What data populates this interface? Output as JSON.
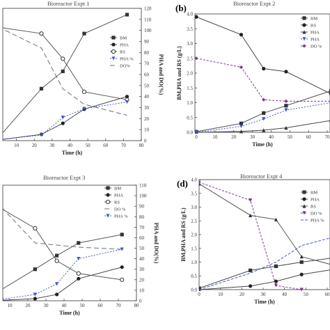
{
  "chart_data": [
    {
      "type": "line",
      "title": "Bioreactor Expt 1",
      "xlabel": "Time (h)",
      "ylabel_right": "PHA and DO(%)",
      "xlim": [
        0,
        80
      ],
      "x_ticks": [
        "10",
        "20",
        "30",
        "40",
        "50",
        "60",
        "70",
        "80"
      ],
      "y2lim": [
        0,
        120
      ],
      "y2_ticks": [
        "0",
        "10",
        "20",
        "30",
        "40",
        "50",
        "60",
        "70",
        "80",
        "90",
        "100",
        "110",
        "120"
      ],
      "legend": [
        "BM",
        "PHA",
        "RS",
        "PHA %",
        "DO%"
      ],
      "legend_position": "top-right",
      "series": [
        {
          "name": "BM",
          "axis": "left",
          "x": [
            0,
            24,
            36,
            48,
            72
          ],
          "y": [
            0.1,
            1.65,
            2.2,
            3.4,
            4.0
          ]
        },
        {
          "name": "PHA",
          "axis": "left",
          "x": [
            0,
            24,
            36,
            48,
            72
          ],
          "y": [
            0.02,
            0.2,
            0.55,
            1.0,
            1.4
          ]
        },
        {
          "name": "RS",
          "axis": "left",
          "x": [
            0,
            24,
            36,
            48,
            72
          ],
          "y": [
            3.6,
            3.4,
            2.6,
            1.55,
            1.3
          ]
        },
        {
          "name": "PHA %",
          "axis": "right",
          "x": [
            0,
            24,
            36,
            48,
            72
          ],
          "y": [
            1,
            5,
            21,
            29,
            35
          ]
        },
        {
          "name": "DO%",
          "axis": "right",
          "x": [
            0,
            24,
            36,
            48,
            72
          ],
          "y": [
            103,
            84,
            47,
            33,
            23
          ]
        }
      ]
    },
    {
      "type": "line",
      "title": "Bioreactor Expt 2",
      "panel_label": "(b)",
      "xlabel": "Time (h)",
      "ylabel": "BM,PHA and RS (g/L)",
      "xlim": [
        0,
        70
      ],
      "x_ticks": [
        "0",
        "10",
        "20",
        "30",
        "40",
        "50",
        "60",
        "70"
      ],
      "ylim": [
        0,
        4.0
      ],
      "y_ticks": [
        "0.0",
        "0.5",
        "1.0",
        "1.5",
        "2.0",
        "2.5",
        "3.0",
        "3.5",
        "4.0"
      ],
      "legend": [
        "BM",
        "RS",
        "PHA",
        "PHA",
        "DO %"
      ],
      "legend_position": "top-right",
      "series": [
        {
          "name": "BM",
          "x": [
            0,
            24,
            36,
            48,
            72
          ],
          "y": [
            0.02,
            0.3,
            0.65,
            0.9,
            1.4
          ]
        },
        {
          "name": "RS",
          "x": [
            0,
            24,
            36,
            48,
            72
          ],
          "y": [
            3.9,
            3.3,
            2.15,
            2.05,
            1.3
          ]
        },
        {
          "name": "PHA",
          "x": [
            0,
            24,
            36,
            48,
            72
          ],
          "y": [
            0.0,
            0.03,
            0.07,
            0.15,
            0.4
          ]
        },
        {
          "name": "PHA",
          "x": [
            0,
            24,
            36,
            48,
            72
          ],
          "y": [
            0.0,
            0.2,
            0.45,
            0.75,
            1.0
          ]
        },
        {
          "name": "DO %",
          "x": [
            0,
            24,
            36,
            48,
            72
          ],
          "y": [
            2.5,
            2.2,
            1.1,
            1.05,
            1.05
          ]
        }
      ]
    },
    {
      "type": "line",
      "title": "Bioreactor Expt 3",
      "xlabel": "Time (h)",
      "ylabel_right": "PHA and DO(%)",
      "x_ticks": [
        "10",
        "20",
        "30",
        "40",
        "50",
        "60",
        "70",
        "80"
      ],
      "y2lim": [
        0,
        110
      ],
      "y2_ticks": [
        "0",
        "10",
        "20",
        "30",
        "40",
        "50",
        "60",
        "70",
        "80",
        "90",
        "100",
        "110"
      ],
      "legend": [
        "BM",
        "PHA",
        "RS",
        "DO %",
        "PHA %"
      ],
      "legend_position": "top-right",
      "series": [
        {
          "name": "BM",
          "axis": "right",
          "x": [
            0,
            24,
            36,
            48,
            72
          ],
          "y": [
            5,
            30,
            43,
            55,
            63
          ]
        },
        {
          "name": "PHA",
          "axis": "right",
          "x": [
            0,
            24,
            36,
            48,
            72
          ],
          "y": [
            0,
            2,
            6,
            21,
            32
          ]
        },
        {
          "name": "RS",
          "axis": "right",
          "x": [
            0,
            24,
            36,
            48,
            72
          ],
          "y": [
            93,
            69,
            38,
            26,
            20
          ]
        },
        {
          "name": "DO %",
          "axis": "right",
          "x": [
            0,
            24,
            36,
            48,
            72
          ],
          "y": [
            99,
            55,
            53,
            51,
            49
          ]
        },
        {
          "name": "PHA %",
          "axis": "right",
          "x": [
            0,
            24,
            36,
            48,
            72
          ],
          "y": [
            0,
            6,
            16,
            40,
            49
          ]
        }
      ]
    },
    {
      "type": "line",
      "title": "Bioreactor Expt 4",
      "panel_label": "(d)",
      "xlabel": "Time (h)",
      "ylabel": "BM,PHA and RS (g/L)",
      "x_ticks": [
        "0",
        "10",
        "20",
        "30",
        "40",
        "50",
        "60"
      ],
      "ylim": [
        0,
        4.0
      ],
      "y_ticks": [
        "0.0",
        "0.5",
        "1.0",
        "1.5",
        "2.0",
        "2.5",
        "3.0",
        "3.5",
        "4.0"
      ],
      "legend": [
        "BM",
        "PHA",
        "RS",
        "DO %",
        "PHA %"
      ],
      "legend_position": "top-right",
      "series": [
        {
          "name": "BM",
          "x": [
            0,
            24,
            36,
            48,
            72
          ],
          "y": [
            0.05,
            0.7,
            0.85,
            1.0,
            1.25
          ]
        },
        {
          "name": "PHA",
          "x": [
            0,
            24,
            36,
            48,
            72
          ],
          "y": [
            0.0,
            0.13,
            0.3,
            0.55,
            0.85
          ]
        },
        {
          "name": "RS",
          "x": [
            0,
            24,
            36,
            48,
            72
          ],
          "y": [
            3.85,
            2.7,
            2.55,
            1.2,
            0.7
          ]
        },
        {
          "name": "DO %",
          "x": [
            0,
            24,
            36,
            48,
            72
          ],
          "y": [
            3.9,
            3.25,
            0.15,
            0.0,
            0.0
          ]
        },
        {
          "name": "PHA %",
          "x": [
            0,
            24,
            36,
            48,
            72
          ],
          "y": [
            0.0,
            0.6,
            1.0,
            1.6,
            2.1
          ]
        }
      ]
    }
  ]
}
